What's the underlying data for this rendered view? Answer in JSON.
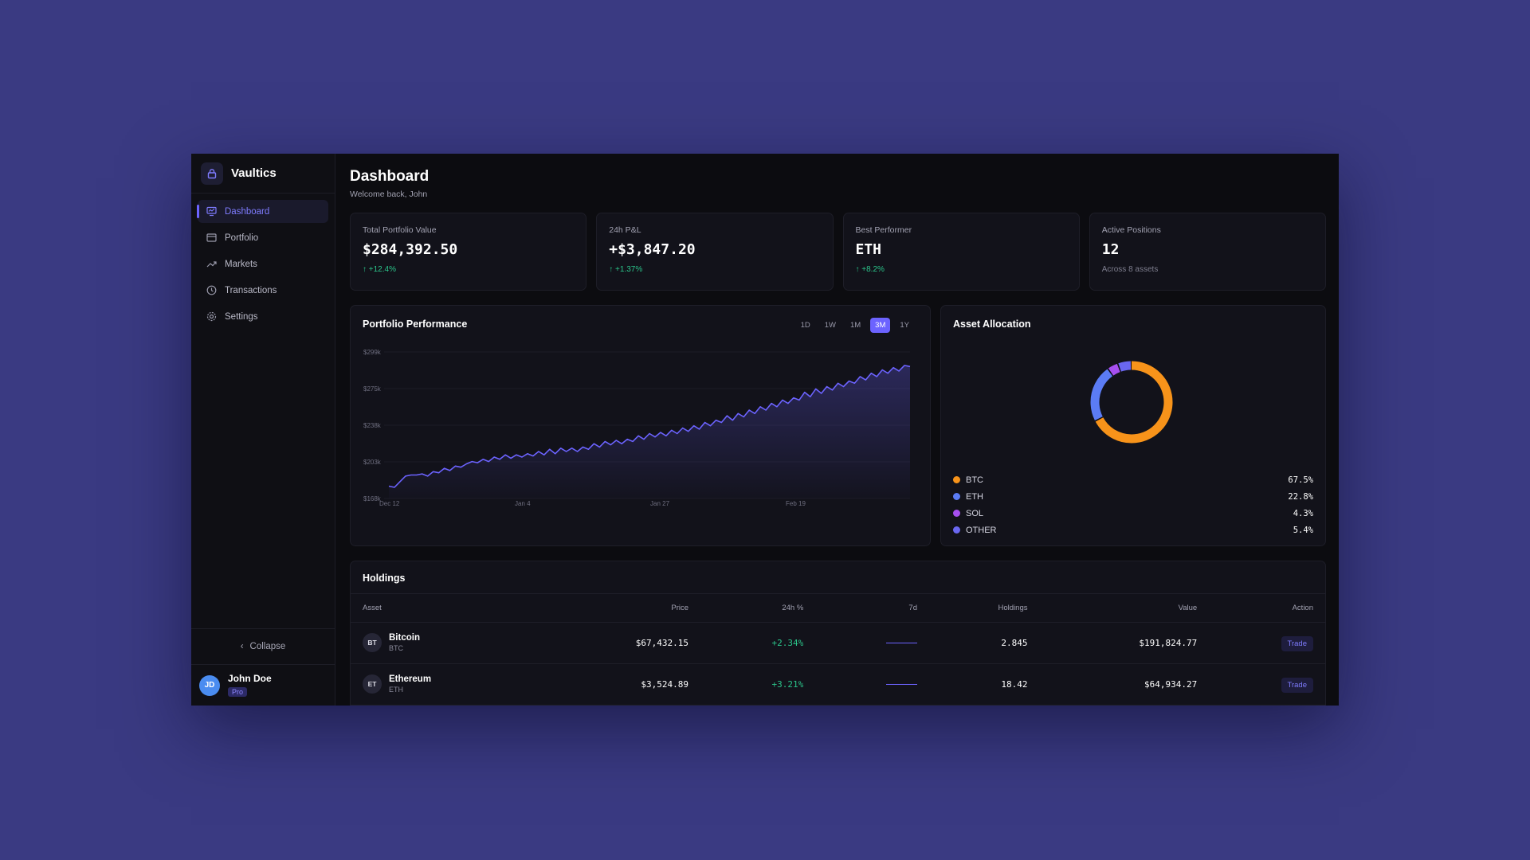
{
  "app": {
    "name": "Vaultics",
    "logo_icon": "lock-icon"
  },
  "sidebar": {
    "items": [
      {
        "label": "Dashboard",
        "icon": "dashboard-icon",
        "active": true
      },
      {
        "label": "Portfolio",
        "icon": "wallet-icon",
        "active": false
      },
      {
        "label": "Markets",
        "icon": "trend-icon",
        "active": false
      },
      {
        "label": "Transactions",
        "icon": "clock-icon",
        "active": false
      },
      {
        "label": "Settings",
        "icon": "gear-icon",
        "active": false
      }
    ],
    "collapse_label": "Collapse",
    "user": {
      "initials": "JD",
      "name": "John Doe",
      "plan": "Pro"
    }
  },
  "header": {
    "title": "Dashboard",
    "subtitle": "Welcome back, John"
  },
  "stats": [
    {
      "label": "Total Portfolio Value",
      "value": "$284,392.50",
      "change": "+12.4%",
      "change_type": "up"
    },
    {
      "label": "24h P&L",
      "value": "+$3,847.20",
      "change": "+1.37%",
      "change_type": "up"
    },
    {
      "label": "Best Performer",
      "value": "ETH",
      "change": "+8.2%",
      "change_type": "up"
    },
    {
      "label": "Active Positions",
      "value": "12",
      "change": "Across 8 assets",
      "change_type": "muted"
    }
  ],
  "performance": {
    "title": "Portfolio Performance",
    "ranges": [
      "1D",
      "1W",
      "1M",
      "3M",
      "1Y"
    ],
    "active_range": "3M"
  },
  "chart_data": {
    "type": "area",
    "title": "Portfolio Performance",
    "y_ticks": [
      "$299k",
      "$275k",
      "$238k",
      "$203k",
      "$168k"
    ],
    "x_ticks": [
      "Dec 12",
      "Jan 4",
      "Jan 27",
      "Feb 19"
    ],
    "ylim": [
      168,
      299
    ],
    "series": [
      {
        "values": [
          179,
          178,
          183,
          188,
          189,
          189,
          190,
          188,
          192,
          191,
          195,
          193,
          197,
          196,
          199,
          201,
          200,
          203,
          201,
          205,
          203,
          207,
          204,
          207,
          205,
          208,
          206,
          210,
          207,
          212,
          208,
          213,
          210,
          213,
          210,
          214,
          212,
          217,
          214,
          219,
          216,
          220,
          217,
          221,
          219,
          224,
          221,
          226,
          223,
          227,
          224,
          229,
          226,
          231,
          228,
          233,
          230,
          236,
          233,
          238,
          236,
          242,
          238,
          244,
          241,
          247,
          244,
          250,
          247,
          253,
          250,
          256,
          253,
          258,
          256,
          263,
          259,
          266,
          262,
          268,
          265,
          271,
          268,
          273,
          271,
          277,
          274,
          280,
          277,
          283,
          280,
          285,
          282,
          287,
          286
        ]
      }
    ],
    "color": "#6c63ff"
  },
  "allocation": {
    "title": "Asset Allocation",
    "items": [
      {
        "name": "BTC",
        "pct": "67.5%",
        "value": 67.5,
        "color": "#f7931a"
      },
      {
        "name": "ETH",
        "pct": "22.8%",
        "value": 22.8,
        "color": "#5b7cf5"
      },
      {
        "name": "SOL",
        "pct": "4.3%",
        "value": 4.3,
        "color": "#a64ff0"
      },
      {
        "name": "OTHER",
        "pct": "5.4%",
        "value": 5.4,
        "color": "#6a67f0"
      }
    ]
  },
  "holdings": {
    "title": "Holdings",
    "columns": [
      "Asset",
      "Price",
      "24h %",
      "7d",
      "Holdings",
      "Value",
      "Action"
    ],
    "rows": [
      {
        "initials": "BT",
        "name": "Bitcoin",
        "symbol": "BTC",
        "price": "$67,432.15",
        "change": "+2.34%",
        "holdings": "2.845",
        "value": "$191,824.77",
        "action": "Trade"
      },
      {
        "initials": "ET",
        "name": "Ethereum",
        "symbol": "ETH",
        "price": "$3,524.89",
        "change": "+3.21%",
        "holdings": "18.42",
        "value": "$64,934.27",
        "action": "Trade"
      }
    ]
  }
}
